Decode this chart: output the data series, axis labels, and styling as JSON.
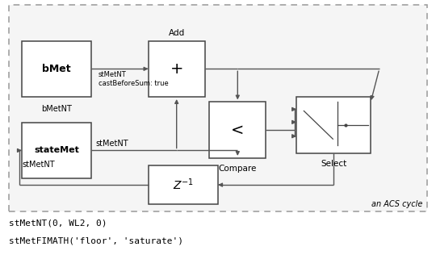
{
  "bg_color": "#ffffff",
  "border_color": "#999999",
  "box_edge_color": "#444444",
  "line_color": "#555555",
  "label_acs": "an ACS cycle",
  "footer1": "stMetNT(0, WL2, 0)",
  "footer2": "stMetFIMATH('floor', 'saturate')",
  "border": [
    0.02,
    0.17,
    0.96,
    0.81
  ],
  "bMet": [
    0.05,
    0.62,
    0.16,
    0.22
  ],
  "stateMet": [
    0.05,
    0.3,
    0.16,
    0.22
  ],
  "Add": [
    0.34,
    0.62,
    0.13,
    0.22
  ],
  "Compare": [
    0.48,
    0.38,
    0.13,
    0.22
  ],
  "Delay": [
    0.34,
    0.2,
    0.16,
    0.15
  ],
  "Select": [
    0.68,
    0.4,
    0.17,
    0.22
  ]
}
